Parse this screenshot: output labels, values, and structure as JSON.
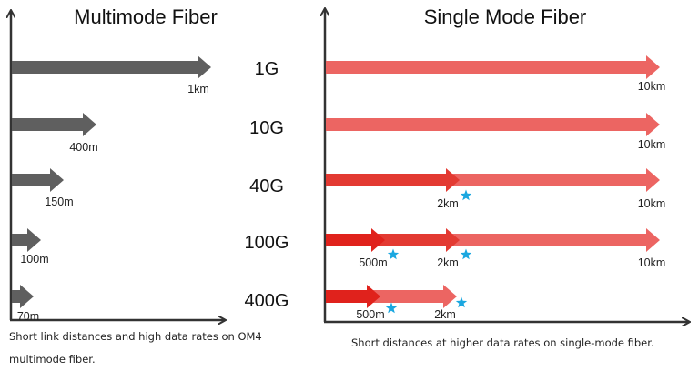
{
  "left_panel": {
    "title": "Multimode Fiber",
    "caption_line1": "Short link distances and high data rates on OM4",
    "caption_line2": "multimode fiber.",
    "arrow_color": "#5f5f5f",
    "distances": [
      "1km",
      "400m",
      "150m",
      "100m",
      "70m"
    ]
  },
  "data_rates": [
    "1G",
    "10G",
    "40G",
    "100G",
    "400G"
  ],
  "right_panel": {
    "title": "Single Mode Fiber",
    "caption": "Short distances at higher data rates on single-mode fiber.",
    "colors": {
      "light": "#ec6562",
      "medium": "#e33a32",
      "dark": "#e0221c",
      "star": "#1aa7e0"
    },
    "rows": [
      {
        "rate": "1G",
        "distances": [
          "10km"
        ]
      },
      {
        "rate": "10G",
        "distances": [
          "10km"
        ]
      },
      {
        "rate": "40G",
        "distances": [
          "2km",
          "10km"
        ]
      },
      {
        "rate": "100G",
        "distances": [
          "500m",
          "2km",
          "10km"
        ]
      },
      {
        "rate": "400G",
        "distances": [
          "500m",
          "2km"
        ]
      }
    ]
  }
}
